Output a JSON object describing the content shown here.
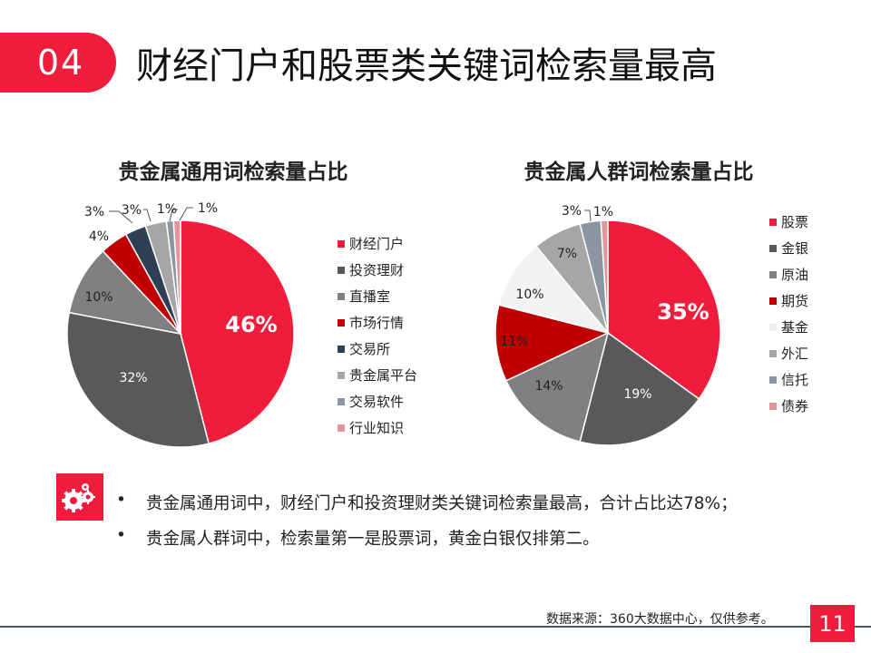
{
  "header": {
    "number": "04",
    "title": "财经门户和股票类关键词检索量最高"
  },
  "chart_data": [
    {
      "type": "pie",
      "title": "贵金属通用词检索量占比",
      "categories": [
        "财经门户",
        "投资理财",
        "直播室",
        "市场行情",
        "交易所",
        "贵金属平台",
        "交易软件",
        "行业知识"
      ],
      "values": [
        46,
        32,
        10,
        4,
        3,
        3,
        1,
        1
      ],
      "labels": [
        "46%",
        "32%",
        "10%",
        "4%",
        "3%",
        "3%",
        "1%",
        "1%"
      ],
      "colors": [
        "#ef1d3b",
        "#595959",
        "#808080",
        "#c00000",
        "#2e3f53",
        "#a6a6a6",
        "#8c96a3",
        "#e3969a"
      ],
      "legend": "right"
    },
    {
      "type": "pie",
      "title": "贵金属人群词检索量占比",
      "categories": [
        "股票",
        "金银",
        "原油",
        "期货",
        "基金",
        "外汇",
        "信托",
        "债券"
      ],
      "values": [
        35,
        19,
        14,
        11,
        10,
        7,
        3,
        1
      ],
      "labels": [
        "35%",
        "19%",
        "14%",
        "11%",
        "10%",
        "7%",
        "3%",
        "1%"
      ],
      "colors": [
        "#ef1d3b",
        "#595959",
        "#808080",
        "#c00000",
        "#f2f2f2",
        "#a6a6a6",
        "#8c96a3",
        "#e3969a"
      ],
      "legend": "right"
    }
  ],
  "bullets": [
    "贵金属通用词中，财经门户和投资理财类关键词检索量最高，合计占比达78%；",
    "贵金属人群词中，检索量第一是股票词，黄金白银仅排第二。"
  ],
  "bullet_mark": "•",
  "icon": "gears-icon",
  "footer": {
    "source": "数据来源：360大数据中心，仅供参考。",
    "page": "11"
  }
}
